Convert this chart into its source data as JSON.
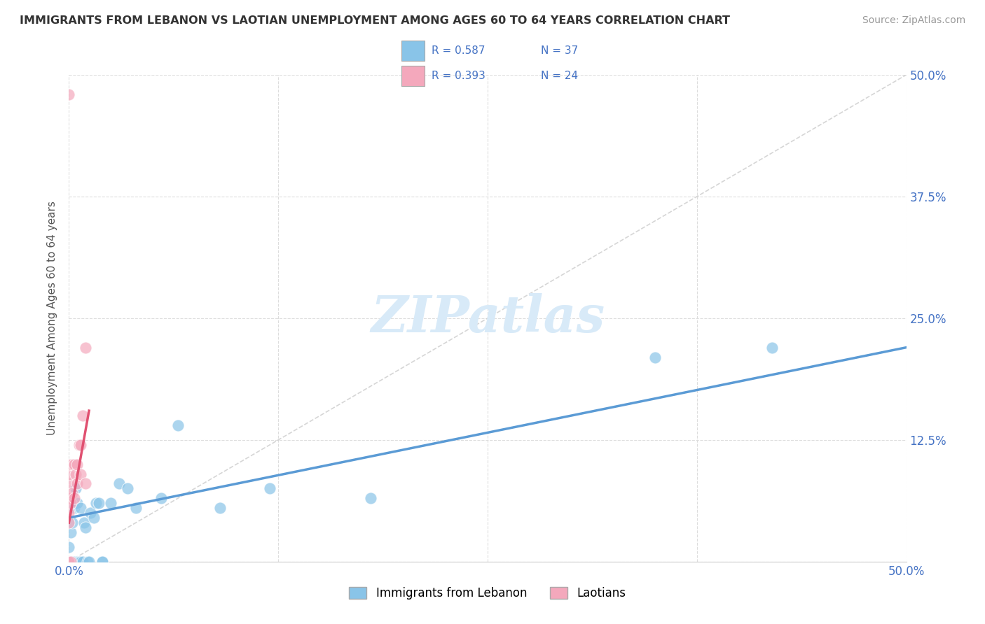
{
  "title": "IMMIGRANTS FROM LEBANON VS LAOTIAN UNEMPLOYMENT AMONG AGES 60 TO 64 YEARS CORRELATION CHART",
  "source": "Source: ZipAtlas.com",
  "ylabel": "Unemployment Among Ages 60 to 64 years",
  "xlim": [
    0.0,
    0.5
  ],
  "ylim": [
    0.0,
    0.5
  ],
  "ytick_vals": [
    0.0,
    0.125,
    0.25,
    0.375,
    0.5
  ],
  "xtick_vals": [
    0.0,
    0.125,
    0.25,
    0.375,
    0.5
  ],
  "xticklabels_show": [
    "0.0%",
    "",
    "",
    "",
    "50.0%"
  ],
  "yticklabels_show": [
    "",
    "12.5%",
    "25.0%",
    "37.5%",
    "50.0%"
  ],
  "legend_labels": [
    "Immigrants from Lebanon",
    "Laotians"
  ],
  "blue_color": "#89C4E8",
  "pink_color": "#F4A8BC",
  "blue_line_color": "#5B9BD5",
  "pink_line_color": "#E05070",
  "diag_color": "#cccccc",
  "background_color": "#ffffff",
  "grid_color": "#dddddd",
  "title_color": "#333333",
  "tick_label_color": "#4472C4",
  "watermark_color": "#D8EAF8",
  "lebanon_x": [
    0.0,
    0.0,
    0.0,
    0.001,
    0.001,
    0.002,
    0.002,
    0.003,
    0.003,
    0.004,
    0.005,
    0.005,
    0.006,
    0.007,
    0.007,
    0.008,
    0.009,
    0.01,
    0.011,
    0.012,
    0.013,
    0.015,
    0.016,
    0.018,
    0.02,
    0.02,
    0.025,
    0.03,
    0.035,
    0.04,
    0.055,
    0.065,
    0.09,
    0.12,
    0.18,
    0.35,
    0.42
  ],
  "lebanon_y": [
    0.0,
    0.0,
    0.015,
    0.0,
    0.03,
    0.0,
    0.04,
    0.0,
    0.055,
    0.075,
    0.0,
    0.06,
    0.0,
    0.0,
    0.055,
    0.0,
    0.04,
    0.035,
    0.0,
    0.0,
    0.05,
    0.045,
    0.06,
    0.06,
    0.0,
    0.0,
    0.06,
    0.08,
    0.075,
    0.055,
    0.065,
    0.14,
    0.055,
    0.075,
    0.065,
    0.21,
    0.22
  ],
  "laotian_x": [
    0.0,
    0.0,
    0.0,
    0.0,
    0.0,
    0.0,
    0.0,
    0.0,
    0.0,
    0.001,
    0.001,
    0.002,
    0.002,
    0.003,
    0.003,
    0.004,
    0.005,
    0.005,
    0.006,
    0.007,
    0.007,
    0.008,
    0.01,
    0.01
  ],
  "laotian_y": [
    0.0,
    0.0,
    0.04,
    0.05,
    0.065,
    0.08,
    0.09,
    0.1,
    0.48,
    0.0,
    0.06,
    0.07,
    0.1,
    0.065,
    0.1,
    0.09,
    0.08,
    0.1,
    0.12,
    0.09,
    0.12,
    0.15,
    0.08,
    0.22
  ],
  "blue_trend_x0": 0.0,
  "blue_trend_x1": 0.5,
  "blue_trend_y0": 0.045,
  "blue_trend_y1": 0.22,
  "pink_trend_x0": 0.0,
  "pink_trend_x1": 0.012,
  "pink_trend_y0": 0.04,
  "pink_trend_y1": 0.155
}
